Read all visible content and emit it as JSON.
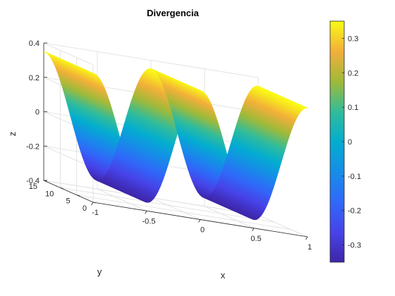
{
  "chart_data": {
    "type": "surface",
    "title": "Divergencia",
    "xlabel": "x",
    "ylabel": "y",
    "zlabel": "z",
    "x": {
      "lim": [
        -1,
        1
      ],
      "ticks": [
        -1,
        -0.5,
        0,
        0.5,
        1
      ],
      "tick_labels": [
        "-1",
        "-0.5",
        "0",
        "0.5",
        "1"
      ]
    },
    "y": {
      "lim": [
        0,
        15
      ],
      "ticks": [
        0,
        5,
        10,
        15
      ],
      "tick_labels": [
        "0",
        "5",
        "10",
        "15"
      ]
    },
    "z": {
      "lim": [
        -0.4,
        0.4
      ],
      "ticks": [
        -0.4,
        -0.2,
        0,
        0.2,
        0.4
      ],
      "tick_labels": [
        "-0.4",
        "-0.2",
        "0",
        "0.2",
        "0.4"
      ]
    },
    "surface": {
      "function": "z = amplitude * cos(frequency * pi * x), constant along y",
      "amplitude": 0.35,
      "frequency": 2,
      "x_range": [
        -1,
        1
      ],
      "y_range": [
        0,
        15
      ]
    },
    "colorbar": {
      "lim": [
        -0.35,
        0.35
      ],
      "ticks": [
        -0.3,
        -0.2,
        -0.1,
        0,
        0.1,
        0.2,
        0.3
      ],
      "tick_labels": [
        "-0.3",
        "-0.2",
        "-0.1",
        "0",
        "0.1",
        "0.2",
        "0.3"
      ],
      "colormap": "parula"
    },
    "grid": true,
    "box": false
  }
}
